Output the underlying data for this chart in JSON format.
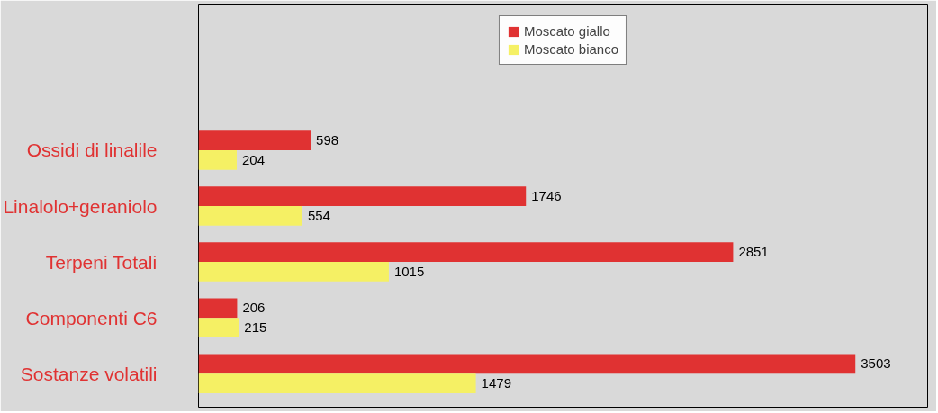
{
  "chart_data": {
    "type": "bar",
    "orientation": "horizontal",
    "categories": [
      "Ossidi di linalile",
      "Linalolo+geraniolo",
      "Terpeni Totali",
      "Componenti C6",
      "Sostanze volatili"
    ],
    "series": [
      {
        "name": "Moscato giallo",
        "color": "#e03232",
        "values": [
          598,
          1746,
          2851,
          206,
          3503
        ]
      },
      {
        "name": "Moscato bianco",
        "color": "#f5f064",
        "values": [
          204,
          554,
          1015,
          215,
          1479
        ]
      }
    ],
    "data_labels": true,
    "legend": "top",
    "grid": false,
    "tick_labels": "y"
  }
}
